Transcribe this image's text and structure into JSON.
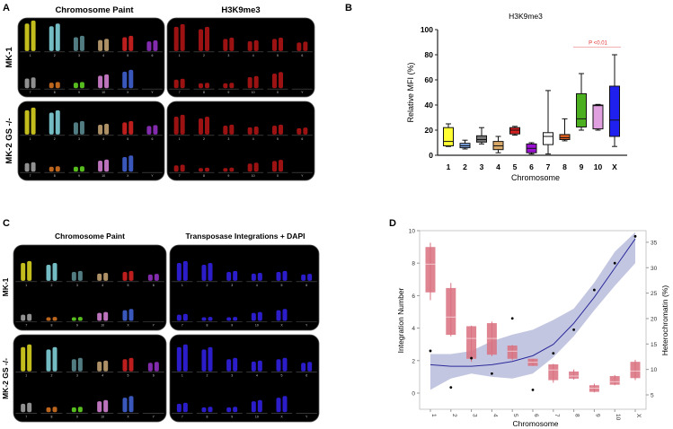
{
  "panel_labels": {
    "a": "A",
    "b": "B",
    "c": "C",
    "d": "D"
  },
  "panel_a": {
    "col_titles": [
      "Chromosome Paint",
      "H3K9me3"
    ],
    "row_labels": [
      "MK-1",
      "MK-2 GS -/-"
    ]
  },
  "panel_c": {
    "col_titles": [
      "Chromosome Paint",
      "Transposase Integrations + DAPI"
    ],
    "row_labels": [
      "MK-1",
      "MK-2 GS -/-"
    ]
  },
  "karyotype": {
    "labels": [
      "1",
      "2",
      "3",
      "4",
      "5",
      "6",
      "7",
      "8",
      "9",
      "10",
      "X",
      "Y"
    ],
    "relative_length": [
      1,
      0.9,
      0.5,
      0.4,
      0.5,
      0.35,
      0.35,
      0.2,
      0.2,
      0.45,
      0.6,
      0
    ],
    "paint_colors": [
      "#d8d020",
      "#80d0d8",
      "#5a8a90",
      "#c0a070",
      "#d02020",
      "#9030c0",
      "#a0a0a0",
      "#d07020",
      "#60d020",
      "#d080d0",
      "#4060d0",
      "#000000"
    ],
    "h3k9me3_color": "#d01818",
    "dapi_color": "#3020e0"
  },
  "chart_data": [
    {
      "type": "box",
      "title": "H3K9me3",
      "xlabel": "Chromosome",
      "ylabel": "Relative MFI (%)",
      "ylim": [
        0,
        100
      ],
      "yticks": [
        "0",
        "20",
        "40",
        "60",
        "80",
        "100"
      ],
      "categories": [
        "1",
        "2",
        "3",
        "4",
        "5",
        "6",
        "7",
        "8",
        "9",
        "10",
        "X"
      ],
      "boxes": [
        {
          "min": 7,
          "q1": 7.5,
          "median": 11,
          "q3": 22,
          "max": 25,
          "color": "#ffff33"
        },
        {
          "min": 5,
          "q1": 6,
          "median": 7.5,
          "q3": 9.5,
          "max": 12,
          "color": "#7fa6e8"
        },
        {
          "min": 9,
          "q1": 10.5,
          "median": 12.5,
          "q3": 15.5,
          "max": 22,
          "color": "#777777"
        },
        {
          "min": 2,
          "q1": 4.5,
          "median": 7.5,
          "q3": 11,
          "max": 15,
          "color": "#d8a868"
        },
        {
          "min": 16,
          "q1": 17,
          "median": 20,
          "q3": 22,
          "max": 23,
          "color": "#d42020"
        },
        {
          "min": 1,
          "q1": 2,
          "median": 5.5,
          "q3": 9,
          "max": 10,
          "color": "#9a10d0"
        },
        {
          "min": 1,
          "q1": 8.5,
          "median": 15,
          "q3": 18,
          "max": 51.5,
          "color": "#ffffff"
        },
        {
          "min": 11.5,
          "q1": 12.5,
          "median": 14,
          "q3": 16.5,
          "max": 29,
          "color": "#e06020"
        },
        {
          "min": 20,
          "q1": 22.5,
          "median": 29,
          "q3": 49,
          "max": 65,
          "color": "#4caf20"
        },
        {
          "min": 20,
          "q1": 21,
          "median": 39.5,
          "q3": 40,
          "max": 40.5,
          "color": "#e0a0e0"
        },
        {
          "min": 7,
          "q1": 15,
          "median": 28,
          "q3": 55,
          "max": 80,
          "color": "#2020ee"
        }
      ],
      "annotation": {
        "text": "P <0.01",
        "from": "9",
        "to": "X",
        "y": 86,
        "color": "#e03030"
      }
    },
    {
      "type": "box+scatter+line",
      "xlabel": "Chromosome",
      "ylabel_left": "Integration Number",
      "ylabel_right": "Heterochromatin (%)",
      "ylim_left": [
        -1,
        10
      ],
      "yticks_left": [
        "0",
        "2",
        "4",
        "6",
        "8",
        "10"
      ],
      "yticks_right": [
        "5",
        "10",
        "15",
        "20",
        "25",
        "30",
        "35"
      ],
      "categories": [
        "1",
        "2",
        "3",
        "4",
        "5",
        "6",
        "7",
        "8",
        "9",
        "10",
        "X"
      ],
      "integration_points": [
        2.6,
        0.35,
        2.15,
        1.2,
        4.6,
        0.2,
        2.45,
        3.9,
        6.35,
        8,
        9.65
      ],
      "fit_line": [
        1.75,
        1.65,
        1.65,
        1.75,
        1.95,
        2.3,
        3.0,
        4.3,
        5.9,
        7.7,
        9.5
      ],
      "fit_band_low": [
        0.2,
        0.9,
        1.2,
        1.0,
        0.9,
        1.2,
        2.2,
        3.5,
        5.1,
        6.6,
        8.0
      ],
      "fit_band_high": [
        2.4,
        2.4,
        2.6,
        3.2,
        3.6,
        3.9,
        4.5,
        5.2,
        6.8,
        8.7,
        9.9
      ],
      "heterochromatin_boxes": [
        {
          "min": 23.6,
          "q1": 25.15,
          "median": 30.7,
          "q3": 34.06,
          "max": 34.9
        },
        {
          "min": 16.5,
          "q1": 16.8,
          "median": 20.3,
          "q3": 26.0,
          "max": 27.0
        },
        {
          "min": 11.5,
          "q1": 12.1,
          "median": 16.1,
          "q3": 18.5,
          "max": 18.6
        },
        {
          "min": 12.6,
          "q1": 12.9,
          "median": 16.1,
          "q3": 19.1,
          "max": 19.4
        },
        {
          "min": 11.8,
          "q1": 12.1,
          "median": 13.6,
          "q3": 14.7,
          "max": 14.8
        },
        {
          "min": 10.7,
          "q1": 10.7,
          "median": 11.4,
          "q3": 12.1,
          "max": 12.1
        },
        {
          "min": 7.4,
          "q1": 7.9,
          "median": 9.9,
          "q3": 11.0,
          "max": 11.1
        },
        {
          "min": 8.0,
          "q1": 8.2,
          "median": 8.7,
          "q3": 9.6,
          "max": 10.0
        },
        {
          "min": 5.5,
          "q1": 5.6,
          "median": 6.3,
          "q3": 6.9,
          "max": 7.2
        },
        {
          "min": 6.9,
          "q1": 7.0,
          "median": 7.6,
          "q3": 8.7,
          "max": 8.9
        },
        {
          "min": 7.9,
          "q1": 8.3,
          "median": 9.7,
          "q3": 11.5,
          "max": 11.9
        }
      ],
      "colors": {
        "box": "#d9707f",
        "line": "#2a2a9a",
        "band": "#b8bcdc",
        "points": "#000000"
      }
    }
  ]
}
